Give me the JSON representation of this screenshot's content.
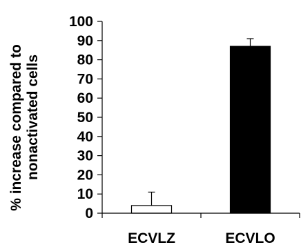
{
  "chart_data": {
    "type": "bar",
    "categories": [
      "ECVLZ",
      "ECVLO"
    ],
    "values": [
      4,
      87
    ],
    "errors": [
      7,
      4
    ],
    "ylabel_lines": [
      "% increase compared to",
      "nonactivated cells"
    ],
    "ylim": [
      0,
      100
    ],
    "yticks": [
      0,
      10,
      20,
      30,
      40,
      50,
      60,
      70,
      80,
      90,
      100
    ],
    "bar_colors": [
      "#ffffff",
      "#000000"
    ],
    "grid": false,
    "legend": "none"
  }
}
